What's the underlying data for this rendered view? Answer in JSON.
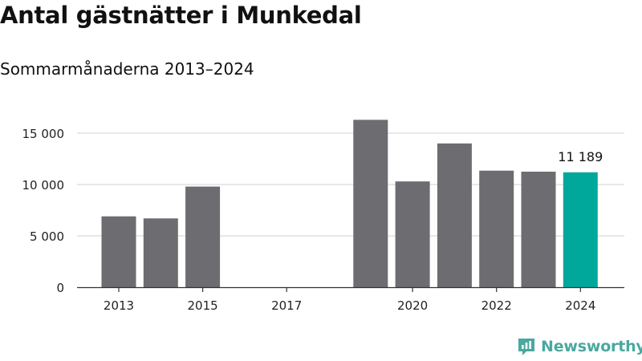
{
  "title": "Antal gästnätter i Munkedal",
  "subtitle": "Sommarmånaderna 2013–2024",
  "brand": {
    "name": "Newsworthy",
    "color": "#4aa8a0",
    "icon": "newsworthy-logo-icon"
  },
  "colors": {
    "bar": "#6d6c71",
    "highlight": "#00a89c",
    "grid": "#d9d9d9",
    "axis": "#333333",
    "text": "#222222"
  },
  "chart_data": {
    "type": "bar",
    "title": "Antal gästnätter i Munkedal",
    "subtitle": "Sommarmånaderna 2013–2024",
    "xlabel": "",
    "ylabel": "",
    "x": [
      2013,
      2014,
      2015,
      2016,
      2017,
      2018,
      2019,
      2020,
      2021,
      2022,
      2023,
      2024
    ],
    "values": [
      6900,
      6700,
      9800,
      null,
      null,
      null,
      16300,
      10300,
      14000,
      11350,
      11250,
      11189
    ],
    "highlight_x": 2024,
    "data_labels": [
      {
        "x": 2024,
        "text": "11 189"
      }
    ],
    "x_ticks": [
      {
        "value": 2013,
        "label": "2013"
      },
      {
        "value": 2015,
        "label": "2015"
      },
      {
        "value": 2017,
        "label": "2017"
      },
      {
        "value": 2020,
        "label": "2020"
      },
      {
        "value": 2022,
        "label": "2022"
      },
      {
        "value": 2024,
        "label": "2024"
      }
    ],
    "y_ticks": [
      {
        "value": 0,
        "label": "0"
      },
      {
        "value": 5000,
        "label": "5 000"
      },
      {
        "value": 10000,
        "label": "10 000"
      },
      {
        "value": 15000,
        "label": "15 000"
      }
    ],
    "ylim": [
      0,
      17000
    ],
    "grid": true,
    "legend": "none"
  }
}
